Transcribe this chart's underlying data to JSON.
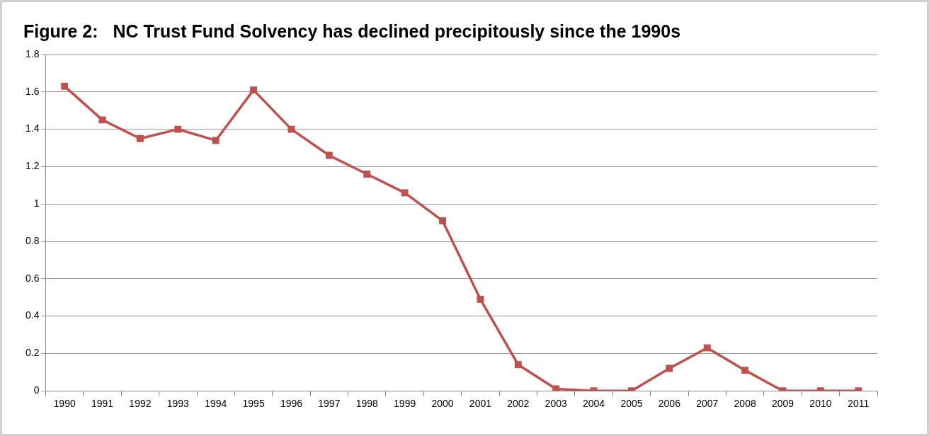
{
  "chart_data": {
    "type": "line",
    "title": "Figure 2:   NC Trust Fund Solvency has declined precipitously since the 1990s",
    "categories": [
      "1990",
      "1991",
      "1992",
      "1993",
      "1994",
      "1995",
      "1996",
      "1997",
      "1998",
      "1999",
      "2000",
      "2001",
      "2002",
      "2003",
      "2004",
      "2005",
      "2006",
      "2007",
      "2008",
      "2009",
      "2010",
      "2011"
    ],
    "series": [
      {
        "color": "#c0504d",
        "values": [
          1.63,
          1.45,
          1.35,
          1.4,
          1.34,
          1.61,
          1.4,
          1.26,
          1.16,
          1.06,
          0.91,
          0.49,
          0.14,
          0.01,
          0,
          0,
          0.12,
          0.23,
          0.11,
          0,
          0,
          0
        ]
      }
    ],
    "ylim": [
      0,
      1.8
    ],
    "yticks": [
      0,
      0.2,
      0.4,
      0.6,
      0.8,
      1,
      1.2,
      1.4,
      1.6,
      1.8
    ],
    "grid": "y",
    "legend": false,
    "marker": "square",
    "line_style": "solid"
  }
}
